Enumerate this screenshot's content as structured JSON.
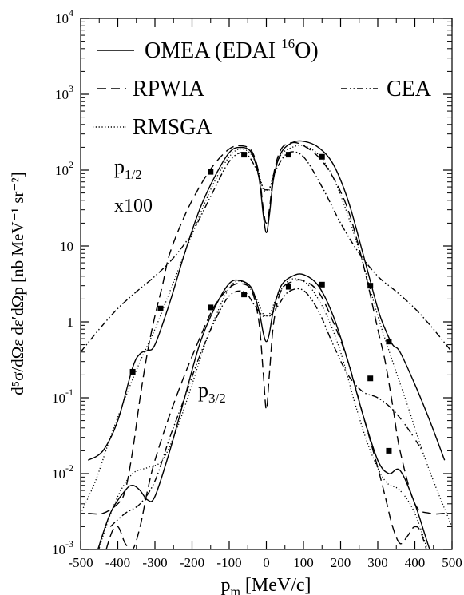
{
  "chart_data": {
    "type": "line",
    "xlabel_main": "p",
    "xlabel_sub": "m",
    "xlabel_rest": " [MeV/c]",
    "ylabel": "d⁵σ/dΩε dε′dΩp [nb MeV⁻¹ sr⁻²]",
    "xlim": [
      -500,
      500
    ],
    "ylim_log10": [
      -3,
      4
    ],
    "x_ticks": [
      -500,
      -400,
      -300,
      -200,
      -100,
      0,
      100,
      200,
      300,
      400,
      500
    ],
    "x_tick_labels": [
      "-500",
      "-400",
      "-300",
      "-200",
      "-100",
      "0",
      "100",
      "200",
      "300",
      "400",
      "500"
    ],
    "y_tick_labels": [
      {
        "exp": -3,
        "base": "10",
        "sup": "-3"
      },
      {
        "exp": -2,
        "base": "10",
        "sup": "-2"
      },
      {
        "exp": -1,
        "base": "10",
        "sup": "-1"
      },
      {
        "exp": 0,
        "base": "1",
        "sup": ""
      },
      {
        "exp": 1,
        "base": "10",
        "sup": ""
      },
      {
        "exp": 2,
        "base": "10",
        "sup": "2"
      },
      {
        "exp": 3,
        "base": "10",
        "sup": "3"
      },
      {
        "exp": 4,
        "base": "10",
        "sup": "4"
      }
    ],
    "legend": [
      {
        "name": "OMEA (EDAI ",
        "sup": "16",
        "tail": "O)",
        "style": "solid"
      },
      {
        "name": "RPWIA",
        "sup": "",
        "tail": "",
        "style": "dashed"
      },
      {
        "name": "CEA",
        "sup": "",
        "tail": "",
        "style": "dashdotdot"
      },
      {
        "name": "RMSGA",
        "sup": "",
        "tail": "",
        "style": "dotted"
      }
    ],
    "annotations": {
      "p12_main": "p",
      "p12_sub": "1/2",
      "scale": "x100",
      "p32_main": "p",
      "p32_sub": "3/2"
    },
    "groups": [
      {
        "id": "p12",
        "data_points": {
          "x": [
            -150,
            -60,
            60,
            150,
            280,
            330
          ],
          "y": [
            95,
            160,
            160,
            150,
            3.0,
            0.55
          ]
        },
        "series": [
          {
            "name": "OMEA",
            "style": "solid",
            "x": [
              -480,
              -440,
              -400,
              -360,
              -340,
              -320,
              -300,
              -260,
              -220,
              -180,
              -140,
              -100,
              -70,
              -40,
              -20,
              -8,
              0,
              8,
              20,
              40,
              70,
              100,
              140,
              180,
              220,
              260,
              300,
              320,
              340,
              360,
              400,
              440,
              480
            ],
            "y": [
              0.015,
              0.02,
              0.05,
              0.25,
              0.38,
              0.42,
              0.5,
              1.8,
              8,
              30,
              80,
              170,
              200,
              170,
              80,
              25,
              15,
              25,
              80,
              170,
              230,
              240,
              200,
              120,
              40,
              8,
              1.5,
              0.8,
              0.5,
              0.4,
              0.15,
              0.05,
              0.015
            ]
          },
          {
            "name": "RPWIA",
            "style": "dashed",
            "x": [
              -480,
              -440,
              -400,
              -380,
              -360,
              -340,
              -320,
              -300,
              -280,
              -260,
              -220,
              -180,
              -140,
              -100,
              -70,
              -40,
              -20,
              -8,
              0,
              8,
              20,
              40,
              70,
              100,
              140,
              180,
              220,
              260,
              300,
              320,
              340,
              360,
              400,
              440,
              480
            ],
            "y": [
              0.003,
              0.003,
              0.004,
              0.006,
              0.02,
              0.1,
              0.4,
              1.2,
              3,
              8,
              25,
              60,
              120,
              190,
              210,
              180,
              90,
              30,
              20,
              30,
              90,
              190,
              230,
              210,
              150,
              80,
              30,
              6,
              0.8,
              0.3,
              0.08,
              0.02,
              0.004,
              0.003,
              0.003
            ]
          },
          {
            "name": "CEA",
            "style": "dashdotdot",
            "x": [
              -500,
              -450,
              -400,
              -350,
              -300,
              -250,
              -200,
              -150,
              -100,
              -60,
              -30,
              -10,
              0,
              10,
              30,
              60,
              100,
              150,
              200,
              250,
              300,
              350,
              400,
              450,
              500
            ],
            "y": [
              0.4,
              0.8,
              1.5,
              2.5,
              4,
              7,
              15,
              45,
              130,
              170,
              110,
              60,
              55,
              60,
              110,
              170,
              150,
              60,
              20,
              8,
              4,
              2.5,
              1.5,
              0.8,
              0.4
            ]
          },
          {
            "name": "RMSGA",
            "style": "dotted",
            "x": [
              -500,
              -460,
              -420,
              -380,
              -340,
              -300,
              -260,
              -220,
              -180,
              -140,
              -100,
              -70,
              -40,
              -20,
              -8,
              0,
              8,
              20,
              40,
              70,
              100,
              140,
              180,
              220,
              260,
              300,
              340,
              380,
              420,
              460,
              500
            ],
            "y": [
              0.003,
              0.008,
              0.03,
              0.1,
              0.3,
              0.8,
              2.5,
              8,
              25,
              70,
              150,
              190,
              160,
              90,
              55,
              55,
              55,
              90,
              160,
              200,
              210,
              160,
              80,
              25,
              6,
              1.2,
              0.3,
              0.08,
              0.02,
              0.006,
              0.002
            ]
          }
        ]
      },
      {
        "id": "p32",
        "data_points": {
          "x": [
            -360,
            -285,
            -150,
            -60,
            60,
            150,
            280,
            330
          ],
          "y": [
            0.22,
            1.5,
            1.55,
            2.3,
            2.9,
            3.1,
            0.18,
            0.02
          ]
        },
        "series": [
          {
            "name": "OMEA",
            "style": "solid",
            "x": [
              -500,
              -460,
              -420,
              -380,
              -360,
              -340,
              -320,
              -300,
              -260,
              -220,
              -180,
              -140,
              -100,
              -70,
              -40,
              -20,
              -8,
              0,
              8,
              20,
              40,
              70,
              100,
              140,
              180,
              220,
              260,
              300,
              330,
              360,
              400,
              440,
              480
            ],
            "y": [
              0.0002,
              0.0008,
              0.003,
              0.006,
              0.007,
              0.006,
              0.0045,
              0.005,
              0.02,
              0.1,
              0.5,
              1.5,
              3.2,
              3.5,
              2.8,
              1.4,
              0.7,
              0.55,
              0.7,
              1.5,
              3.0,
              4.0,
              4.2,
              3.0,
              1.2,
              0.3,
              0.06,
              0.015,
              0.01,
              0.011,
              0.004,
              0.001,
              0.0003
            ]
          },
          {
            "name": "RPWIA",
            "style": "dashed",
            "x": [
              -460,
              -420,
              -400,
              -380,
              -360,
              -340,
              -320,
              -300,
              -260,
              -220,
              -180,
              -140,
              -100,
              -70,
              -40,
              -20,
              -8,
              0,
              8,
              20,
              40,
              70,
              100,
              140,
              180,
              220,
              260,
              300,
              320,
              340,
              360,
              380,
              400,
              420,
              460
            ],
            "y": [
              0.0003,
              0.0015,
              0.002,
              0.0012,
              0.001,
              0.002,
              0.006,
              0.015,
              0.06,
              0.2,
              0.6,
              1.6,
              2.8,
              3.2,
              2.6,
              1.0,
              0.2,
              0.07,
              0.2,
              1.0,
              2.6,
              3.4,
              3.5,
              2.5,
              1.0,
              0.3,
              0.06,
              0.012,
              0.005,
              0.002,
              0.0012,
              0.0015,
              0.002,
              0.0015,
              0.0003
            ]
          },
          {
            "name": "CEA",
            "style": "dashdotdot",
            "x": [
              -420,
              -380,
              -340,
              -300,
              -260,
              -220,
              -180,
              -140,
              -100,
              -60,
              -30,
              -10,
              0,
              10,
              30,
              60,
              100,
              140,
              180,
              220,
              260,
              300,
              340,
              380,
              420
            ],
            "y": [
              0.002,
              0.003,
              0.004,
              0.008,
              0.03,
              0.1,
              0.35,
              1.0,
              2.2,
              2.5,
              1.6,
              1.2,
              1.2,
              1.2,
              1.6,
              2.5,
              2.6,
              1.4,
              0.5,
              0.2,
              0.12,
              0.1,
              0.07,
              0.04,
              0.02
            ]
          },
          {
            "name": "RMSGA",
            "style": "dotted",
            "x": [
              -480,
              -440,
              -400,
              -360,
              -320,
              -280,
              -240,
              -200,
              -160,
              -120,
              -90,
              -60,
              -30,
              -10,
              0,
              10,
              30,
              60,
              90,
              120,
              160,
              200,
              240,
              280,
              320,
              360,
              400,
              440,
              480
            ],
            "y": [
              0.0003,
              0.0015,
              0.005,
              0.01,
              0.012,
              0.015,
              0.04,
              0.15,
              0.6,
              1.8,
              3.2,
              3.3,
              2.2,
              1.3,
              1.2,
              1.3,
              2.2,
              3.5,
              3.6,
              2.8,
              1.3,
              0.4,
              0.08,
              0.02,
              0.008,
              0.006,
              0.003,
              0.0008,
              0.0002
            ]
          }
        ]
      }
    ]
  }
}
